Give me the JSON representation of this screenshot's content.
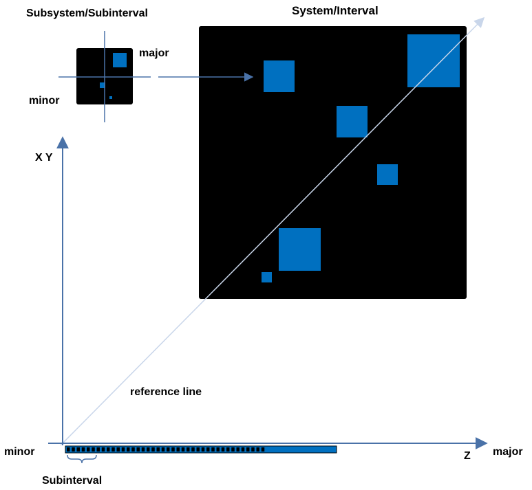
{
  "titles": {
    "subsystem": "Subsystem/Subinterval",
    "system": "System/Interval"
  },
  "labels": {
    "sub_major": "major",
    "sub_minor": "minor",
    "axis_xy": "X Y",
    "reference_line": "reference line",
    "axis_minor": "minor",
    "axis_z": "Z",
    "axis_major": "major",
    "subinterval": "Subinterval"
  },
  "colors": {
    "panel": "#000000",
    "block": "#0070c0",
    "axis": "#4a72a8",
    "reference": "#c9d6ea",
    "text": "#000000"
  }
}
